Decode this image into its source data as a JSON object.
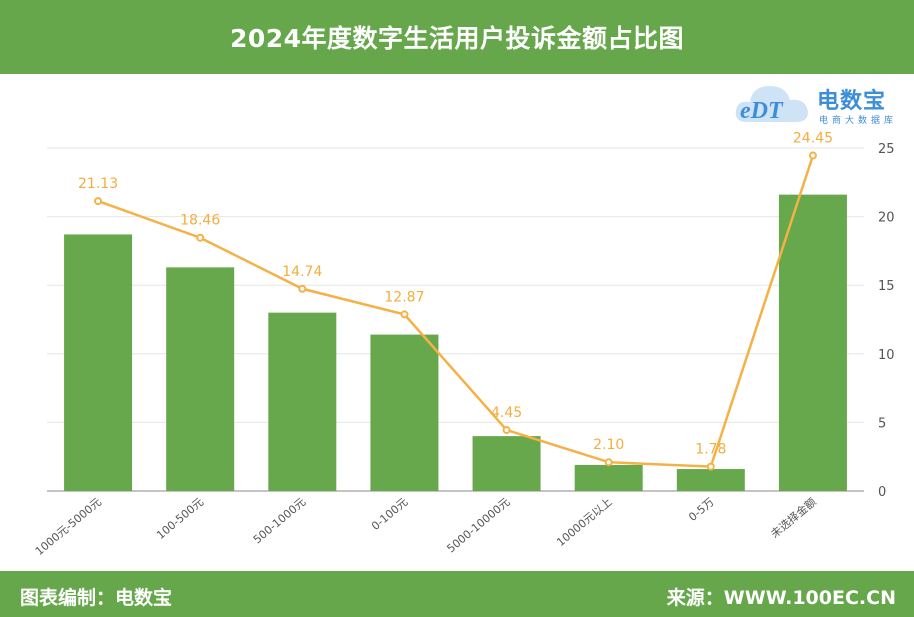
{
  "title": "2024年度数字生活用户投诉金额占比图",
  "footer": {
    "left": "图表编制：电数宝",
    "right": "来源：WWW.100EC.CN"
  },
  "logo": {
    "brand": "电数宝",
    "tagline": "电商大数据库",
    "icon": "cloud-edt-logo"
  },
  "colors": {
    "header": "#66a74c",
    "bar": "#67a84c",
    "line": "#f5b146",
    "logo": "#3d8ed8"
  },
  "chart_data": {
    "type": "bar",
    "categories": [
      "1000元-5000元",
      "100-500元",
      "500-1000元",
      "0-100元",
      "5000-10000元",
      "10000元以上",
      "0-5万",
      "未选择金额"
    ],
    "series": [
      {
        "type": "bar",
        "values": [
          18.7,
          16.3,
          13.0,
          11.4,
          4.0,
          1.9,
          1.6,
          21.6
        ]
      },
      {
        "type": "line",
        "values": [
          21.13,
          18.46,
          14.74,
          12.87,
          4.45,
          2.1,
          1.78,
          24.45
        ],
        "labels": [
          "21.13",
          "18.46",
          "14.74",
          "12.87",
          "4.45",
          "2.10",
          "1.78",
          "24.45"
        ]
      }
    ],
    "y_axis": {
      "position": "right",
      "ticks": [
        "0",
        "5",
        "10",
        "15",
        "20",
        "25"
      ],
      "ylim": [
        0,
        25
      ]
    },
    "grid": true,
    "legend": "none"
  }
}
